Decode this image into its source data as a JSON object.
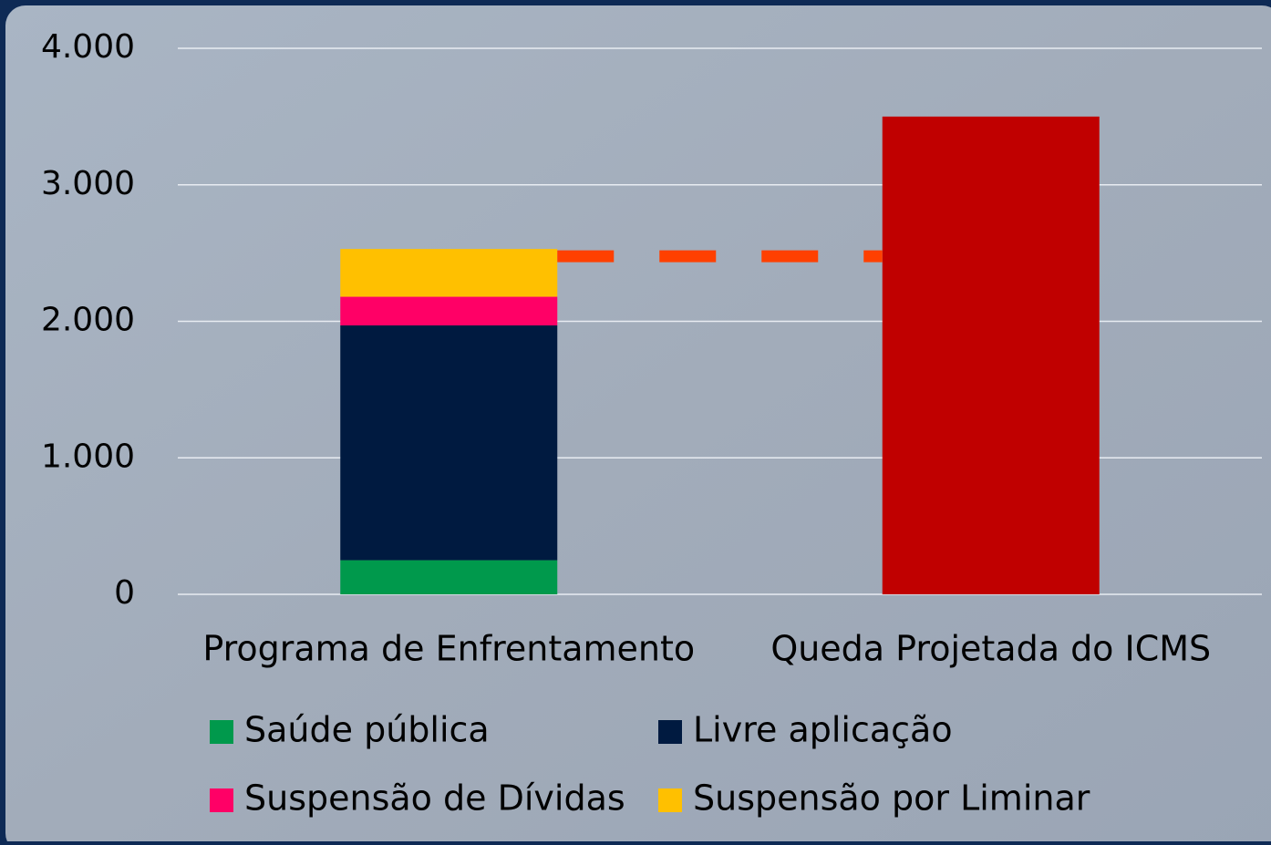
{
  "chart_data": {
    "type": "stacked_bar",
    "categories": [
      "Programa de Enfrentamento",
      "Queda Projetada do ICMS"
    ],
    "series": [
      {
        "name": "Saúde pública",
        "color": "#00994c",
        "values": [
          250,
          null
        ]
      },
      {
        "name": "Livre aplicação",
        "color": "#001a40",
        "values": [
          1720,
          null
        ]
      },
      {
        "name": "Suspensão de Dívidas",
        "color": "#ff0066",
        "values": [
          210,
          null
        ]
      },
      {
        "name": "Suspensão por Liminar",
        "color": "#ffc000",
        "values": [
          350,
          null
        ]
      },
      {
        "color": "#c00000",
        "values": [
          null,
          3500
        ]
      }
    ],
    "ylim": [
      0,
      4000
    ],
    "yticks": [
      0,
      {
        "value": 1000,
        "label": "1.000"
      },
      {
        "value": 2000,
        "label": "2.000"
      },
      {
        "value": 3000,
        "label": "3.000"
      },
      {
        "value": 4000,
        "label": "4.000"
      }
    ],
    "grid": true,
    "legend": "bottom",
    "total_line_color": "#ff4000"
  }
}
